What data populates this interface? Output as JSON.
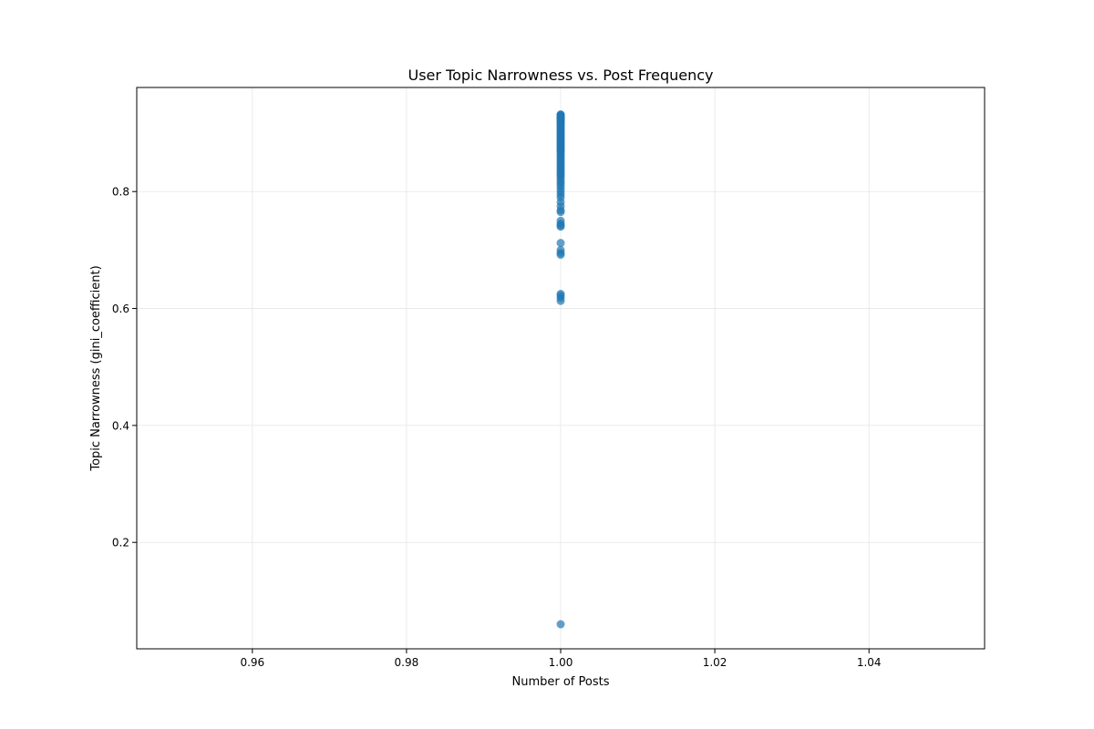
{
  "chart_data": {
    "type": "scatter",
    "title": "User Topic Narrowness vs. Post Frequency",
    "xlabel": "Number of Posts",
    "ylabel": "Topic Narrowness (gini_coefficient)",
    "xlim": [
      0.945,
      1.055
    ],
    "ylim": [
      0.018,
      0.978
    ],
    "x_ticks": [
      0.96,
      0.98,
      1.0,
      1.02,
      1.04
    ],
    "x_tick_labels": [
      "0.96",
      "0.98",
      "1.00",
      "1.02",
      "1.04"
    ],
    "y_ticks": [
      0.2,
      0.4,
      0.6,
      0.8
    ],
    "y_tick_labels": [
      "0.2",
      "0.4",
      "0.6",
      "0.8"
    ],
    "grid": true,
    "series": [
      {
        "color": "#1f77b4",
        "x": [
          1,
          1,
          1,
          1,
          1,
          1,
          1,
          1,
          1,
          1,
          1,
          1,
          1,
          1,
          1,
          1,
          1,
          1,
          1,
          1,
          1,
          1,
          1,
          1,
          1,
          1,
          1,
          1,
          1,
          1,
          1,
          1,
          1,
          1,
          1,
          1,
          1,
          1,
          1,
          1,
          1,
          1,
          1,
          1,
          1,
          1,
          1,
          1,
          1,
          1,
          1,
          1,
          1,
          1,
          1,
          1,
          1,
          1,
          1,
          1,
          1,
          1,
          1,
          1,
          1,
          1,
          1,
          1,
          1,
          1,
          1,
          1,
          1,
          1,
          1,
          1,
          1,
          1
        ],
        "y": [
          0.932,
          0.931,
          0.93,
          0.929,
          0.928,
          0.927,
          0.926,
          0.925,
          0.924,
          0.923,
          0.922,
          0.921,
          0.92,
          0.918,
          0.916,
          0.914,
          0.912,
          0.91,
          0.908,
          0.906,
          0.904,
          0.902,
          0.9,
          0.898,
          0.896,
          0.894,
          0.892,
          0.89,
          0.888,
          0.886,
          0.884,
          0.882,
          0.88,
          0.878,
          0.876,
          0.874,
          0.872,
          0.87,
          0.868,
          0.865,
          0.862,
          0.859,
          0.856,
          0.853,
          0.85,
          0.847,
          0.844,
          0.841,
          0.838,
          0.835,
          0.832,
          0.829,
          0.826,
          0.822,
          0.818,
          0.814,
          0.81,
          0.805,
          0.8,
          0.795,
          0.79,
          0.782,
          0.775,
          0.768,
          0.765,
          0.75,
          0.745,
          0.742,
          0.74,
          0.712,
          0.7,
          0.695,
          0.692,
          0.625,
          0.622,
          0.618,
          0.613,
          0.06
        ]
      }
    ]
  }
}
